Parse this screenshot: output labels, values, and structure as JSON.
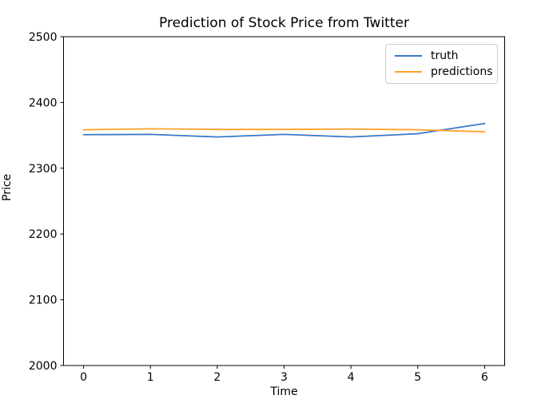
{
  "chart_data": {
    "type": "line",
    "title": "Prediction of Stock Price from Twitter",
    "xlabel": "Time",
    "ylabel": "Price",
    "x": [
      0,
      1,
      2,
      3,
      4,
      5,
      6
    ],
    "series": [
      {
        "name": "truth",
        "color": "#3b77c8",
        "values": [
          2351.0,
          2351.5,
          2347.5,
          2351.5,
          2347.5,
          2352.5,
          2368.0
        ]
      },
      {
        "name": "predictions",
        "color": "#ffa126",
        "values": [
          2358.5,
          2360.0,
          2359.0,
          2359.0,
          2359.5,
          2358.5,
          2355.5
        ]
      }
    ],
    "xticks": [
      0,
      1,
      2,
      3,
      4,
      5,
      6
    ],
    "yticks": [
      2000,
      2100,
      2200,
      2300,
      2400,
      2500
    ],
    "xlim": [
      -0.3,
      6.3
    ],
    "ylim": [
      2000,
      2500
    ],
    "grid": false,
    "legend_position": "upper right",
    "line_width": 1.8,
    "colors": {
      "spine": "#000000",
      "legend_border": "#cccccc",
      "background": "#ffffff"
    }
  }
}
